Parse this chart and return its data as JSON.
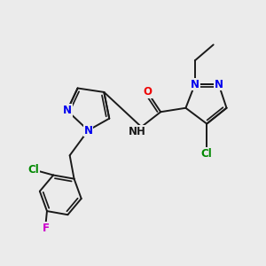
{
  "background_color": "#ebebeb",
  "bond_color": "#1a1a1a",
  "bond_width": 1.4,
  "colors": {
    "N": "#0000ee",
    "O": "#ee0000",
    "Cl": "#008800",
    "F": "#cc00cc",
    "C": "#1a1a1a",
    "NH": "#1a1a1a"
  },
  "font_size": 8.5,
  "fig_width": 3.0,
  "fig_height": 3.0
}
